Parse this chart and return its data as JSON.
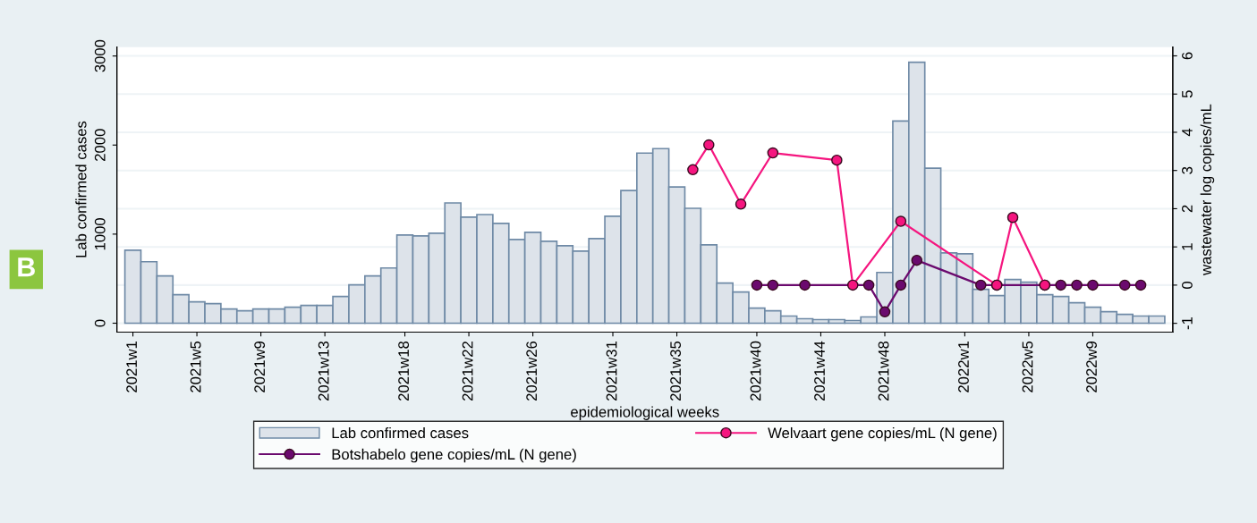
{
  "chart_data": {
    "type": "bar",
    "xlabel": "epidemiological weeks",
    "ylabel": "Lab confirmed cases",
    "y2label": "wastewater log copies/mL",
    "annotations": [
      "B"
    ],
    "categories": [
      "2021w1",
      null,
      null,
      null,
      "2021w5",
      null,
      null,
      null,
      "2021w9",
      null,
      null,
      null,
      "2021w13",
      null,
      null,
      null,
      null,
      "2021w18",
      null,
      null,
      null,
      "2021w22",
      null,
      null,
      null,
      "2021w26",
      null,
      null,
      null,
      null,
      "2021w31",
      null,
      null,
      null,
      "2021w35",
      null,
      null,
      null,
      null,
      "2021w40",
      null,
      null,
      null,
      "2021w44",
      null,
      null,
      null,
      "2021w48",
      null,
      null,
      null,
      null,
      "2022w1",
      null,
      null,
      null,
      "2022w5",
      null,
      null,
      null,
      "2022w9",
      null,
      null,
      null,
      null
    ],
    "series": [
      {
        "name": "Lab confirmed cases",
        "color": "#dde3ea",
        "values": [
          820,
          690,
          530,
          320,
          240,
          220,
          160,
          140,
          160,
          160,
          180,
          200,
          200,
          300,
          430,
          530,
          620,
          990,
          980,
          1010,
          1350,
          1190,
          1220,
          1120,
          940,
          1020,
          920,
          870,
          810,
          950,
          1200,
          1490,
          1910,
          1960,
          1530,
          1290,
          880,
          450,
          350,
          170,
          140,
          80,
          50,
          40,
          40,
          30,
          70,
          570,
          2270,
          2930,
          1740,
          790,
          780,
          380,
          310,
          490,
          460,
          320,
          300,
          230,
          180,
          130,
          100,
          80,
          80
        ]
      },
      {
        "name": "Botshabelo gene copies/mL (N gene)",
        "type": "line",
        "axis": "y2",
        "color": "#6b0a6e",
        "values": [
          null,
          null,
          null,
          null,
          null,
          null,
          null,
          null,
          null,
          null,
          null,
          null,
          null,
          null,
          null,
          null,
          null,
          null,
          null,
          null,
          null,
          null,
          null,
          null,
          null,
          null,
          null,
          null,
          null,
          null,
          null,
          null,
          null,
          null,
          null,
          null,
          null,
          null,
          null,
          0,
          0,
          null,
          0,
          null,
          null,
          null,
          0,
          -0.7,
          0,
          0.65,
          null,
          null,
          null,
          0,
          0,
          null,
          null,
          0,
          0,
          0,
          0,
          null,
          0,
          0,
          null
        ]
      },
      {
        "name": "Welvaart gene copies/mL (N gene)",
        "type": "line",
        "axis": "y2",
        "color": "#f5157f",
        "values": [
          null,
          null,
          null,
          null,
          null,
          null,
          null,
          null,
          null,
          null,
          null,
          null,
          null,
          null,
          null,
          null,
          null,
          null,
          null,
          null,
          null,
          null,
          null,
          null,
          null,
          null,
          null,
          null,
          null,
          null,
          null,
          null,
          null,
          null,
          null,
          3.02,
          3.67,
          null,
          2.12,
          null,
          3.46,
          null,
          null,
          null,
          3.27,
          0,
          null,
          null,
          1.67,
          null,
          null,
          null,
          null,
          null,
          0,
          1.77,
          null,
          0,
          null,
          null,
          null,
          null,
          null,
          null,
          null
        ]
      }
    ],
    "ylim": [
      -100,
      3100
    ],
    "yticks": [
      0,
      1000,
      2000,
      3000
    ],
    "y2lim": [
      -1.23,
      6.23
    ],
    "y2ticks": [
      {
        "value": -1,
        "label": "-1"
      },
      0,
      1,
      2,
      3,
      4,
      5,
      6
    ],
    "grid": "y",
    "legend": "bottom",
    "marker": "circle",
    "line_style": "solid"
  }
}
